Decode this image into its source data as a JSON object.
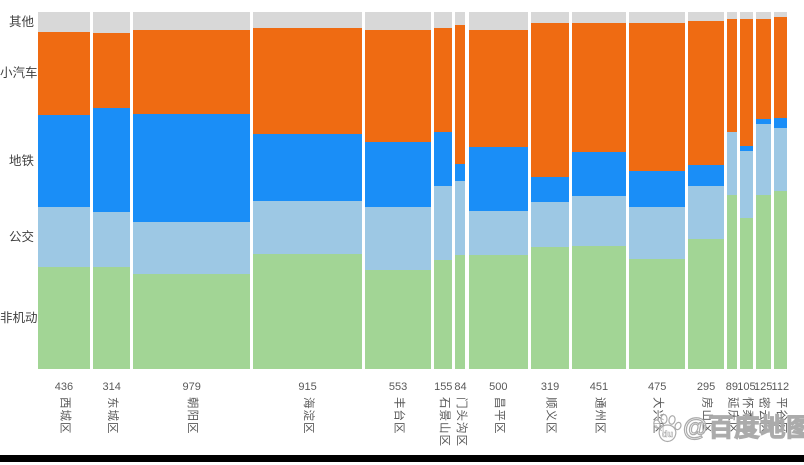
{
  "page": {
    "background": "#ffffff"
  },
  "chart_data": {
    "type": "bar",
    "subtype": "marimekko-variable-width-100pct-stacked",
    "orientation": "vertical",
    "title": "",
    "xlabel": "",
    "ylabel": "",
    "legend_position": "left-axis-labels",
    "grid": false,
    "categories": [
      "西城区",
      "东城区",
      "朝阳区",
      "海淀区",
      "丰台区",
      "石景山区",
      "门头沟区",
      "昌平区",
      "顺义区",
      "通州区",
      "大兴区",
      "房山区",
      "延庆区",
      "怀柔区",
      "密云区",
      "平谷区"
    ],
    "totals": [
      436,
      314,
      979,
      915,
      553,
      155,
      84,
      500,
      319,
      451,
      475,
      295,
      89,
      105,
      125,
      112
    ],
    "bar_width_proportional_to": "totals",
    "series": [
      {
        "name": "其他",
        "color": "#d8d8d8",
        "pct": [
          5.6,
          5.9,
          5.0,
          4.5,
          5.0,
          4.5,
          3.6,
          5.0,
          3.1,
          3.1,
          3.1,
          2.5,
          2.0,
          2.0,
          2.0,
          1.4
        ]
      },
      {
        "name": "小汽车",
        "color": "#ef6b12",
        "pct": [
          23.2,
          20.9,
          23.7,
          29.8,
          31.5,
          29.2,
          39.0,
          32.9,
          43.2,
          36.2,
          41.5,
          40.4,
          31.5,
          35.4,
          27.9,
          28.4
        ]
      },
      {
        "name": "地铁",
        "color": "#1a8ef7",
        "pct": [
          25.7,
          29.3,
          30.1,
          18.7,
          18.1,
          15.0,
          4.7,
          17.8,
          7.0,
          12.3,
          10.0,
          5.8,
          0.0,
          1.4,
          1.4,
          2.8
        ]
      },
      {
        "name": "公交",
        "color": "#9dc8e4",
        "pct": [
          16.8,
          15.3,
          14.5,
          14.8,
          17.8,
          20.8,
          20.9,
          12.5,
          12.5,
          13.9,
          14.5,
          15.0,
          17.8,
          18.9,
          20.1,
          17.5
        ]
      },
      {
        "name": "非机动",
        "color": "#a2d595",
        "pct": [
          28.7,
          28.6,
          26.7,
          32.2,
          27.6,
          30.5,
          31.8,
          31.8,
          34.2,
          34.5,
          30.9,
          36.3,
          48.7,
          42.3,
          48.6,
          49.9
        ]
      }
    ]
  },
  "watermark": {
    "text": "@百度地图",
    "logo": "baidu-paw",
    "logo_text": "du"
  },
  "footer": {
    "bar_color": "#000000"
  }
}
